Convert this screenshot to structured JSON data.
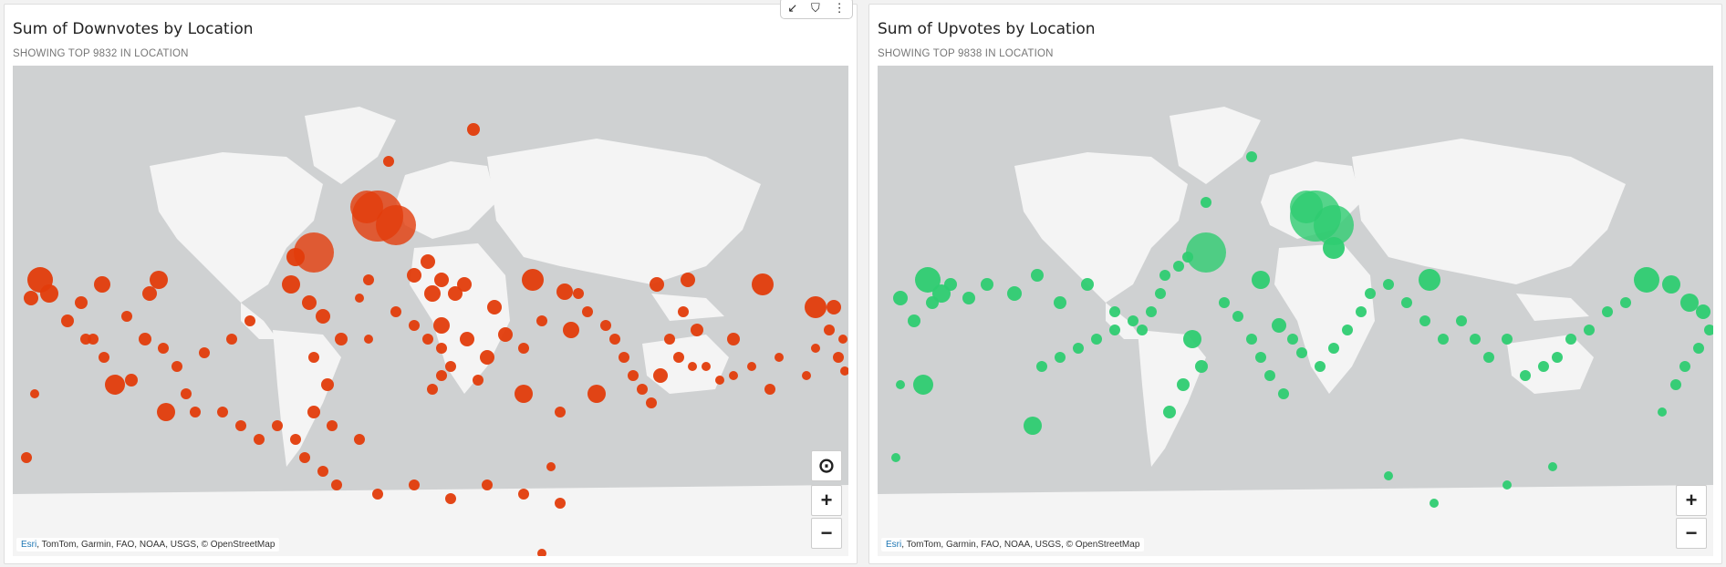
{
  "panels": [
    {
      "title": "Sum of Downvotes by Location",
      "subtitle": "SHOWING TOP 9832 IN LOCATION",
      "attribution_link": "Esri",
      "attribution_rest": ", TomTom, Garmin, FAO, NOAA, USGS, © OpenStreetMap",
      "color": "#e23c0b"
    },
    {
      "title": "Sum of Upvotes by Location",
      "subtitle": "SHOWING TOP 9838 IN LOCATION",
      "attribution_link": "Esri",
      "attribution_rest": ", TomTom, Garmin, FAO, NOAA, USGS, © OpenStreetMap",
      "color": "#2ecc71"
    }
  ],
  "controls": {
    "zoom_in": "+",
    "zoom_out": "−",
    "focus": "⊙"
  },
  "toolbar": {
    "expand": "↙",
    "filter": "⛉",
    "more": "⋮"
  }
}
